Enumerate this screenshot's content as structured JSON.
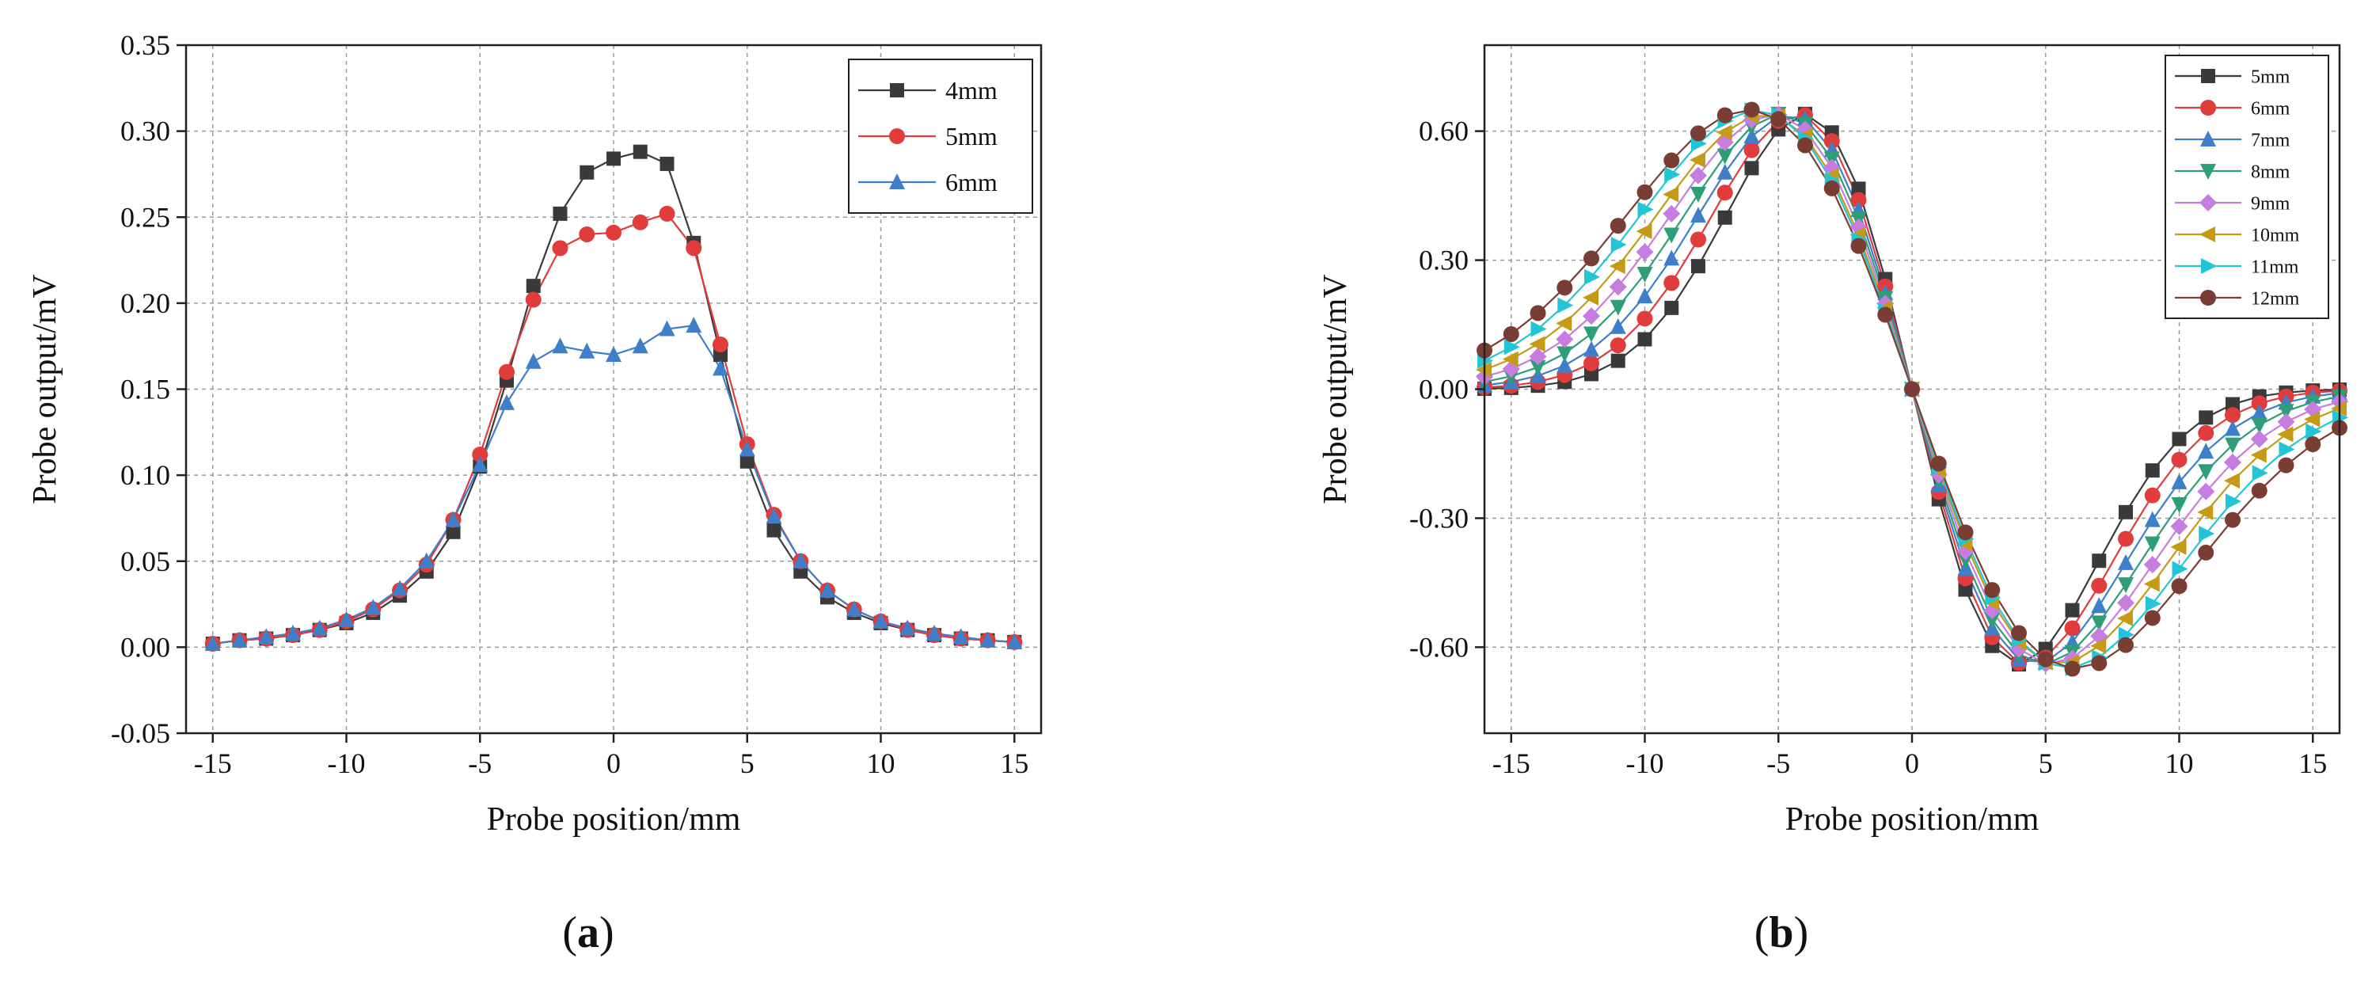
{
  "chart_data": [
    {
      "panel_label": "a",
      "type": "line",
      "title": "",
      "xlabel": "Probe position/mm",
      "ylabel": "Probe output/mV",
      "xlim": [
        -16,
        16
      ],
      "ylim": [
        -0.05,
        0.35
      ],
      "xticks": [
        -15,
        -10,
        -5,
        0,
        5,
        10,
        15
      ],
      "yticks": [
        -0.05,
        0.0,
        0.05,
        0.1,
        0.15,
        0.2,
        0.25,
        0.3,
        0.35
      ],
      "ytick_decimals": 2,
      "grid": true,
      "legend_position": "top-right",
      "x": [
        -15,
        -14,
        -13,
        -12,
        -11,
        -10,
        -9,
        -8,
        -7,
        -6,
        -5,
        -4,
        -3,
        -2,
        -1,
        0,
        1,
        2,
        3,
        4,
        5,
        6,
        7,
        8,
        9,
        10,
        11,
        12,
        13,
        14,
        15
      ],
      "series": [
        {
          "name": "4mm",
          "color": "#3a3a3a",
          "marker": "square",
          "values": [
            0.002,
            0.004,
            0.005,
            0.007,
            0.01,
            0.014,
            0.02,
            0.03,
            0.044,
            0.067,
            0.105,
            0.155,
            0.21,
            0.252,
            0.276,
            0.284,
            0.288,
            0.281,
            0.235,
            0.17,
            0.108,
            0.068,
            0.044,
            0.029,
            0.02,
            0.014,
            0.01,
            0.007,
            0.005,
            0.004,
            0.003
          ]
        },
        {
          "name": "5mm",
          "color": "#e03c3c",
          "marker": "circle",
          "values": [
            0.002,
            0.004,
            0.005,
            0.007,
            0.01,
            0.015,
            0.022,
            0.033,
            0.048,
            0.074,
            0.112,
            0.16,
            0.202,
            0.232,
            0.24,
            0.241,
            0.247,
            0.252,
            0.232,
            0.176,
            0.118,
            0.077,
            0.05,
            0.033,
            0.022,
            0.015,
            0.01,
            0.007,
            0.005,
            0.004,
            0.003
          ]
        },
        {
          "name": "6mm",
          "color": "#3f7fc9",
          "marker": "triangle",
          "values": [
            0.002,
            0.004,
            0.006,
            0.008,
            0.011,
            0.016,
            0.023,
            0.034,
            0.05,
            0.074,
            0.106,
            0.142,
            0.166,
            0.175,
            0.172,
            0.17,
            0.175,
            0.185,
            0.187,
            0.162,
            0.115,
            0.076,
            0.05,
            0.033,
            0.022,
            0.015,
            0.011,
            0.008,
            0.006,
            0.004,
            0.003
          ]
        }
      ]
    },
    {
      "panel_label": "b",
      "type": "line",
      "title": "",
      "xlabel": "Probe position/mm",
      "ylabel": "Probe output/mV",
      "xlim": [
        -16,
        16
      ],
      "ylim": [
        -0.8,
        0.8
      ],
      "xticks": [
        -15,
        -10,
        -5,
        0,
        5,
        10,
        15
      ],
      "yticks": [
        -0.6,
        -0.3,
        0.0,
        0.3,
        0.6
      ],
      "ytick_decimals": 2,
      "grid": true,
      "legend_position": "top-right",
      "x": [
        -16,
        -15,
        -14,
        -13,
        -12,
        -11,
        -10,
        -9,
        -8,
        -7,
        -6,
        -5,
        -4,
        -3,
        -2,
        -1,
        0,
        1,
        2,
        3,
        4,
        5,
        6,
        7,
        8,
        9,
        10,
        11,
        12,
        13,
        14,
        15,
        16
      ],
      "series": [
        {
          "name": "5mm",
          "color": "#3a3a3a",
          "marker": "square",
          "peak": 0.64,
          "peak_x": 4.0
        },
        {
          "name": "6mm",
          "color": "#e03c3c",
          "marker": "circle",
          "peak": 0.64,
          "peak_x": 4.3
        },
        {
          "name": "7mm",
          "color": "#3f7fc9",
          "marker": "triangle",
          "peak": 0.64,
          "peak_x": 4.6
        },
        {
          "name": "8mm",
          "color": "#2e9e78",
          "marker": "triangle-down",
          "peak": 0.64,
          "peak_x": 4.9
        },
        {
          "name": "9mm",
          "color": "#c77ce0",
          "marker": "diamond",
          "peak": 0.64,
          "peak_x": 5.2
        },
        {
          "name": "10mm",
          "color": "#c59a16",
          "marker": "triangle-left",
          "peak": 0.64,
          "peak_x": 5.5
        },
        {
          "name": "11mm",
          "color": "#22c5d6",
          "marker": "triangle-right",
          "peak": 0.65,
          "peak_x": 5.8
        },
        {
          "name": "12mm",
          "color": "#7a3d33",
          "marker": "circle",
          "peak": 0.65,
          "peak_x": 6.1
        }
      ]
    }
  ],
  "panel_labels": {
    "a": {
      "open": "(",
      "letter": "a",
      "close": ")"
    },
    "b": {
      "open": "(",
      "letter": "b",
      "close": ")"
    }
  }
}
